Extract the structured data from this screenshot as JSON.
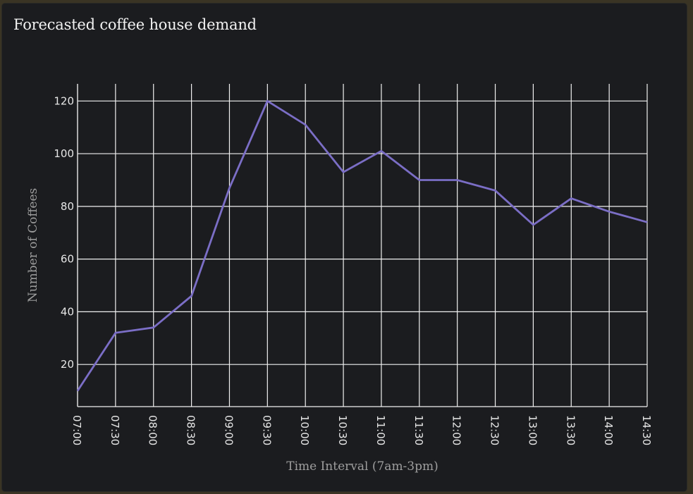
{
  "panel": {
    "title": "Forecasted coffee house demand"
  },
  "colors": {
    "background": "#1b1c1f",
    "frame": "#3a3424",
    "grid": "#f0f0f0",
    "line": "#7b6ec6",
    "tick_text": "#e6e6e6",
    "axis_title_text": "#9e9e9e"
  },
  "chart_data": {
    "type": "line",
    "title": "Forecasted coffee house demand",
    "xlabel": "Time Interval (7am-3pm)",
    "ylabel": "Number of Coffees",
    "categories": [
      "07:00",
      "07:30",
      "08:00",
      "08:30",
      "09:00",
      "09:30",
      "10:00",
      "10:30",
      "11:00",
      "11:30",
      "12:00",
      "12:30",
      "13:00",
      "13:30",
      "14:00",
      "14:30"
    ],
    "series": [
      {
        "values": [
          10,
          32,
          34,
          46,
          87,
          120,
          111,
          93,
          101,
          90,
          90,
          86,
          73,
          83,
          78,
          74
        ]
      }
    ],
    "yticks": [
      20,
      40,
      60,
      80,
      100,
      120
    ],
    "ylim": [
      4,
      126.5
    ],
    "grid": true,
    "legend": "none"
  }
}
